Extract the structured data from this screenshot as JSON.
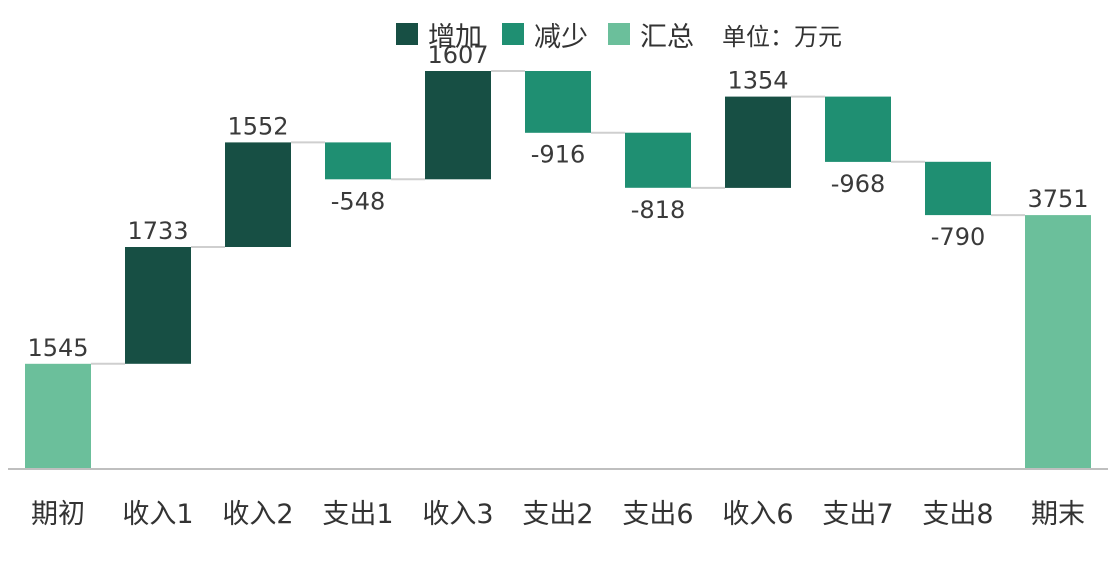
{
  "chart_data": {
    "type": "bar",
    "subtype": "waterfall",
    "unit_label": "单位：万元",
    "legend": [
      {
        "label": "增加",
        "color": "#174f44"
      },
      {
        "label": "减少",
        "color": "#1f8f72"
      },
      {
        "label": "汇总",
        "color": "#6bbf9b"
      }
    ],
    "categories": [
      "期初",
      "收入1",
      "收入2",
      "支出1",
      "收入3",
      "支出2",
      "支出6",
      "收入6",
      "支出7",
      "支出8",
      "期末"
    ],
    "values": [
      1545,
      1733,
      1552,
      -548,
      1607,
      -916,
      -818,
      1354,
      -968,
      -790,
      3751
    ],
    "kinds": [
      "total",
      "increase",
      "increase",
      "decrease",
      "increase",
      "decrease",
      "decrease",
      "increase",
      "decrease",
      "decrease",
      "total"
    ],
    "value_labels": [
      "1545",
      "1733",
      "1552",
      "-548",
      "1607",
      "-916",
      "-818",
      "1354",
      "-968",
      "-790",
      "3751"
    ],
    "ylim": [
      0,
      6200
    ],
    "grid": false,
    "legend_position": "top"
  }
}
